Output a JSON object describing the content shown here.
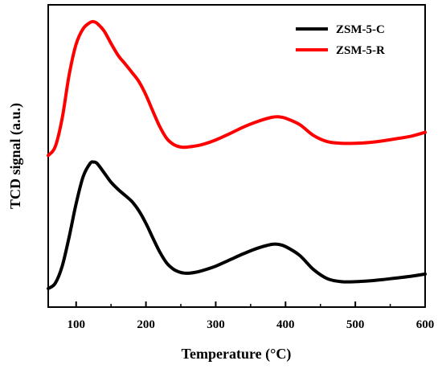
{
  "chart_data": {
    "type": "line",
    "xlabel": "Temperature (°C)",
    "ylabel": "TCD signal (a.u.)",
    "xlim": [
      60,
      600
    ],
    "ylim": [
      0,
      1
    ],
    "xticks": [
      100,
      200,
      300,
      400,
      500,
      600
    ],
    "grid": false,
    "legend_position": "top-right",
    "series": [
      {
        "name": "ZSM-5-C",
        "color": "#000000",
        "x": [
          60,
          70,
          80,
          90,
          100,
          110,
          120,
          125,
          130,
          140,
          150,
          160,
          170,
          180,
          190,
          200,
          210,
          220,
          230,
          240,
          250,
          260,
          270,
          280,
          300,
          320,
          340,
          360,
          380,
          390,
          400,
          420,
          440,
          460,
          480,
          500,
          520,
          540,
          560,
          580,
          600
        ],
        "y": [
          0.021,
          0.04,
          0.103,
          0.211,
          0.332,
          0.431,
          0.48,
          0.485,
          0.48,
          0.446,
          0.411,
          0.385,
          0.363,
          0.34,
          0.306,
          0.26,
          0.206,
          0.154,
          0.114,
          0.091,
          0.08,
          0.077,
          0.08,
          0.086,
          0.103,
          0.126,
          0.149,
          0.169,
          0.183,
          0.183,
          0.175,
          0.143,
          0.091,
          0.057,
          0.046,
          0.046,
          0.049,
          0.054,
          0.06,
          0.066,
          0.074
        ]
      },
      {
        "name": "ZSM-5-R",
        "color": "#ff0000",
        "x": [
          60,
          70,
          80,
          90,
          100,
          110,
          120,
          125,
          130,
          140,
          150,
          160,
          170,
          180,
          190,
          200,
          210,
          220,
          230,
          240,
          250,
          260,
          280,
          300,
          320,
          340,
          360,
          380,
          390,
          400,
          420,
          440,
          460,
          480,
          500,
          520,
          540,
          560,
          580,
          600
        ],
        "y": [
          0.509,
          0.541,
          0.646,
          0.806,
          0.917,
          0.974,
          0.997,
          1.0,
          0.994,
          0.966,
          0.92,
          0.877,
          0.846,
          0.814,
          0.78,
          0.731,
          0.671,
          0.614,
          0.571,
          0.549,
          0.54,
          0.54,
          0.549,
          0.566,
          0.589,
          0.614,
          0.634,
          0.649,
          0.651,
          0.646,
          0.623,
          0.583,
          0.56,
          0.554,
          0.554,
          0.557,
          0.563,
          0.571,
          0.58,
          0.594
        ]
      }
    ]
  }
}
